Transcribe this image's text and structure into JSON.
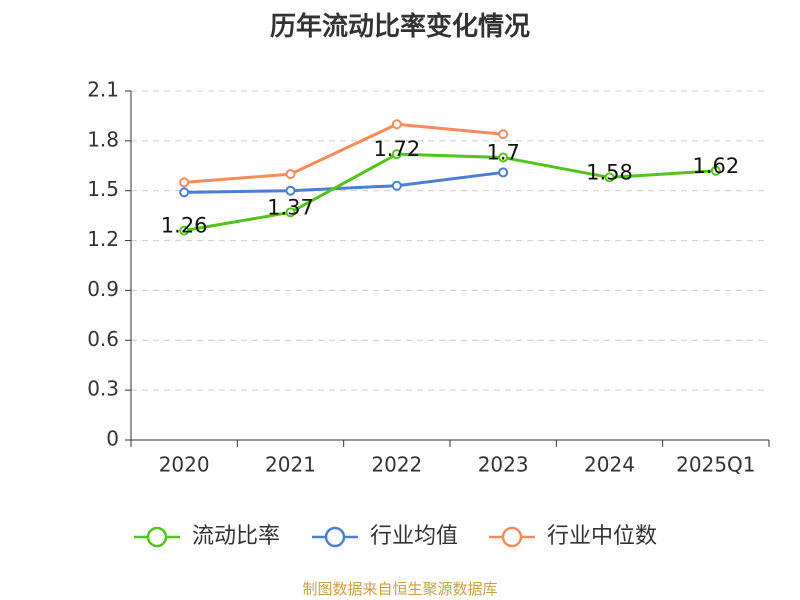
{
  "source_note": "制图数据来自恒生聚源数据库",
  "chart_data": {
    "type": "line",
    "title": "历年流动比率变化情况",
    "categories": [
      "2020",
      "2021",
      "2022",
      "2023",
      "2024",
      "2025Q1"
    ],
    "ylim": [
      0,
      2.1
    ],
    "yticks": [
      0,
      0.3,
      0.6,
      0.9,
      1.2,
      1.5,
      1.8,
      2.1
    ],
    "ytick_labels": [
      "0",
      "0.3",
      "0.6",
      "0.9",
      "1.2",
      "1.5",
      "1.8",
      "2.1"
    ],
    "grid": true,
    "legend_position": "bottom",
    "series": [
      {
        "name": "流动比率",
        "color": "#52c41a",
        "values": [
          1.26,
          1.37,
          1.72,
          1.7,
          1.58,
          1.62
        ],
        "data_labels": [
          "1.26",
          "1.37",
          "1.72",
          "1.7",
          "1.58",
          "1.62"
        ]
      },
      {
        "name": "行业均值",
        "color": "#4a7fd4",
        "values": [
          1.49,
          1.5,
          1.53,
          1.61,
          null,
          null
        ]
      },
      {
        "name": "行业中位数",
        "color": "#f58c5a",
        "values": [
          1.55,
          1.6,
          1.9,
          1.84,
          null,
          null
        ]
      }
    ]
  }
}
